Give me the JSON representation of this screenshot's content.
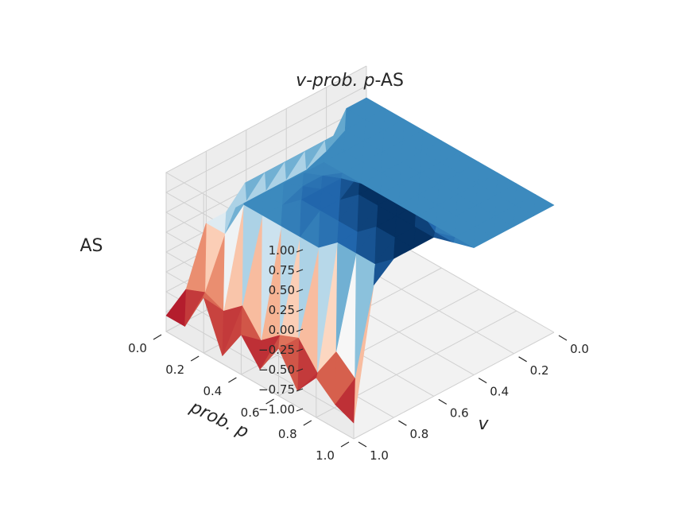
{
  "chart_data": {
    "type": "surface3d",
    "title": {
      "pre": "v",
      "mid": "-prob. p",
      "post": "-AS"
    },
    "xlabel": "v",
    "ylabel": "prob. p",
    "zlabel": "AS",
    "xlim": [
      0.0,
      1.0
    ],
    "ylim": [
      0.0,
      1.0
    ],
    "zlim": [
      -1.0,
      1.0
    ],
    "x_ticks": [
      "0.0",
      "0.2",
      "0.4",
      "0.6",
      "0.8",
      "1.0"
    ],
    "y_ticks": [
      "0.0",
      "0.2",
      "0.4",
      "0.6",
      "0.8",
      "1.0"
    ],
    "z_ticks": [
      "−1.00",
      "−0.75",
      "−0.50",
      "−0.25",
      "0.00",
      "0.25",
      "0.50",
      "0.75",
      "1.00"
    ],
    "colormap": "RdBu",
    "colors": {
      "low": "#67001f",
      "high": "#053061",
      "pane": "#f2f2f2",
      "grid": "#d0d0d0"
    },
    "v_values": [
      0.0,
      0.1,
      0.2,
      0.3,
      0.4,
      0.5,
      0.6,
      0.7,
      0.8,
      0.9,
      1.0
    ],
    "p_values": [
      0.0,
      0.1,
      0.2,
      0.3,
      0.4,
      0.5,
      0.6,
      0.7,
      0.8,
      0.9,
      1.0
    ],
    "AS": [
      [
        0.6,
        0.6,
        0.6,
        0.6,
        0.6,
        0.6,
        0.6,
        0.6,
        0.6,
        0.6,
        0.6
      ],
      [
        0.6,
        0.6,
        0.6,
        0.6,
        0.6,
        0.6,
        0.6,
        0.6,
        0.6,
        0.6,
        0.6
      ],
      [
        0.2,
        0.6,
        0.6,
        0.6,
        0.6,
        0.6,
        0.6,
        0.6,
        0.6,
        0.6,
        0.6
      ],
      [
        0.1,
        0.6,
        0.6,
        0.6,
        0.6,
        0.6,
        0.6,
        0.6,
        0.6,
        0.6,
        0.6
      ],
      [
        0.1,
        0.6,
        0.6,
        0.6,
        0.6,
        0.6,
        0.6,
        0.6,
        0.6,
        0.6,
        0.6
      ],
      [
        0.1,
        0.6,
        0.6,
        0.7,
        0.8,
        1.0,
        1.0,
        1.0,
        1.0,
        0.8,
        0.8
      ],
      [
        0.1,
        0.6,
        0.6,
        0.7,
        0.8,
        0.8,
        1.0,
        1.0,
        1.0,
        1.0,
        1.0
      ],
      [
        0.1,
        0.6,
        0.6,
        0.6,
        0.8,
        0.8,
        0.8,
        0.8,
        1.0,
        1.0,
        1.0
      ],
      [
        0.1,
        0.1,
        0.6,
        0.6,
        0.6,
        0.6,
        0.6,
        0.8,
        0.8,
        0.8,
        1.0
      ],
      [
        -0.6,
        -0.5,
        -0.6,
        -0.4,
        -0.7,
        -0.5,
        -0.4,
        -0.7,
        -0.3,
        -0.5,
        0.8
      ],
      [
        -0.8,
        -0.8,
        -0.3,
        -0.9,
        -0.5,
        -0.8,
        -0.4,
        -0.8,
        -0.5,
        -0.7,
        -0.8
      ]
    ]
  }
}
